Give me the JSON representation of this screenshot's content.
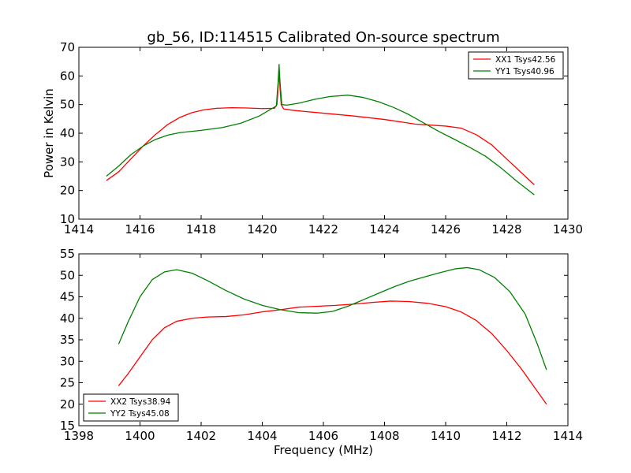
{
  "figure": {
    "title": "gb_56, ID:114515 Calibrated On-source spectrum"
  },
  "chart_data": [
    {
      "type": "line",
      "title": "gb_56, ID:114515 Calibrated On-source spectrum",
      "xlabel": "",
      "ylabel": "Power in Kelvin",
      "xlim": [
        1414,
        1430
      ],
      "ylim": [
        10,
        70
      ],
      "xticks": [
        1414,
        1416,
        1418,
        1420,
        1422,
        1424,
        1426,
        1428,
        1430
      ],
      "yticks": [
        10,
        20,
        30,
        40,
        50,
        60,
        70
      ],
      "grid": false,
      "legend_position": "top-right",
      "series": [
        {
          "name": "XX1 Tsys42.56",
          "color": "#ff0000",
          "points": [
            [
              1414.9,
              23.5
            ],
            [
              1415.3,
              26.5
            ],
            [
              1415.7,
              31
            ],
            [
              1416.1,
              35.5
            ],
            [
              1416.5,
              39.5
            ],
            [
              1416.9,
              43
            ],
            [
              1417.3,
              45.5
            ],
            [
              1417.7,
              47.2
            ],
            [
              1418.1,
              48.2
            ],
            [
              1418.5,
              48.7
            ],
            [
              1419,
              48.9
            ],
            [
              1419.5,
              48.8
            ],
            [
              1420,
              48.6
            ],
            [
              1420.4,
              48.7
            ],
            [
              1420.48,
              50
            ],
            [
              1420.52,
              56
            ],
            [
              1420.55,
              62
            ],
            [
              1420.58,
              56
            ],
            [
              1420.62,
              50
            ],
            [
              1420.7,
              48.5
            ],
            [
              1421,
              48
            ],
            [
              1422,
              47
            ],
            [
              1423,
              46
            ],
            [
              1424,
              44.8
            ],
            [
              1425,
              43.2
            ],
            [
              1426,
              42.5
            ],
            [
              1426.5,
              41.8
            ],
            [
              1427,
              39.5
            ],
            [
              1427.5,
              36
            ],
            [
              1428,
              31
            ],
            [
              1428.5,
              26
            ],
            [
              1428.9,
              22
            ]
          ]
        },
        {
          "name": "YY1 Tsys40.96",
          "color": "#008000",
          "points": [
            [
              1414.9,
              25
            ],
            [
              1415.3,
              28.5
            ],
            [
              1415.7,
              32.5
            ],
            [
              1416.1,
              35.5
            ],
            [
              1416.5,
              37.8
            ],
            [
              1416.9,
              39.3
            ],
            [
              1417.3,
              40.2
            ],
            [
              1418,
              41
            ],
            [
              1418.7,
              42
            ],
            [
              1419.3,
              43.5
            ],
            [
              1419.9,
              46
            ],
            [
              1420.3,
              48.5
            ],
            [
              1420.46,
              49.5
            ],
            [
              1420.52,
              58
            ],
            [
              1420.55,
              64
            ],
            [
              1420.58,
              58
            ],
            [
              1420.64,
              50
            ],
            [
              1420.8,
              49.8
            ],
            [
              1421.2,
              50.5
            ],
            [
              1421.7,
              51.8
            ],
            [
              1422.2,
              52.8
            ],
            [
              1422.8,
              53.3
            ],
            [
              1423.3,
              52.5
            ],
            [
              1423.8,
              51
            ],
            [
              1424.3,
              49
            ],
            [
              1424.8,
              46.5
            ],
            [
              1425.3,
              43.5
            ],
            [
              1425.8,
              40.5
            ],
            [
              1426.3,
              37.8
            ],
            [
              1426.8,
              35
            ],
            [
              1427.3,
              32
            ],
            [
              1427.8,
              28
            ],
            [
              1428.3,
              23.5
            ],
            [
              1428.9,
              18.5
            ]
          ]
        }
      ]
    },
    {
      "type": "line",
      "title": "",
      "xlabel": "Frequency (MHz)",
      "ylabel": "",
      "xlim": [
        1398,
        1414
      ],
      "ylim": [
        15,
        55
      ],
      "xticks": [
        1398,
        1400,
        1402,
        1404,
        1406,
        1408,
        1410,
        1412,
        1414
      ],
      "yticks": [
        15,
        20,
        25,
        30,
        35,
        40,
        45,
        50,
        55
      ],
      "grid": false,
      "legend_position": "bottom-left",
      "series": [
        {
          "name": "XX2 Tsys38.94",
          "color": "#ff0000",
          "points": [
            [
              1399.3,
              24.3
            ],
            [
              1399.6,
              27
            ],
            [
              1400,
              31
            ],
            [
              1400.4,
              35
            ],
            [
              1400.8,
              37.8
            ],
            [
              1401.2,
              39.3
            ],
            [
              1401.7,
              40
            ],
            [
              1402.2,
              40.3
            ],
            [
              1402.8,
              40.4
            ],
            [
              1403.4,
              40.8
            ],
            [
              1404,
              41.5
            ],
            [
              1404.6,
              42
            ],
            [
              1405.2,
              42.6
            ],
            [
              1405.8,
              42.8
            ],
            [
              1406.4,
              43
            ],
            [
              1407,
              43.3
            ],
            [
              1407.6,
              43.7
            ],
            [
              1408.2,
              44
            ],
            [
              1408.8,
              43.9
            ],
            [
              1409.4,
              43.5
            ],
            [
              1410,
              42.7
            ],
            [
              1410.5,
              41.5
            ],
            [
              1411,
              39.5
            ],
            [
              1411.5,
              36.5
            ],
            [
              1412,
              32.5
            ],
            [
              1412.5,
              28
            ],
            [
              1413,
              23
            ],
            [
              1413.3,
              20
            ]
          ]
        },
        {
          "name": "YY2 Tsys45.08",
          "color": "#008000",
          "points": [
            [
              1399.3,
              34
            ],
            [
              1399.6,
              39
            ],
            [
              1400,
              45
            ],
            [
              1400.4,
              49
            ],
            [
              1400.8,
              50.8
            ],
            [
              1401.2,
              51.3
            ],
            [
              1401.7,
              50.5
            ],
            [
              1402.2,
              48.8
            ],
            [
              1402.8,
              46.5
            ],
            [
              1403.4,
              44.5
            ],
            [
              1404,
              43
            ],
            [
              1404.6,
              42
            ],
            [
              1405.2,
              41.3
            ],
            [
              1405.8,
              41.2
            ],
            [
              1406.3,
              41.6
            ],
            [
              1406.8,
              42.8
            ],
            [
              1407.3,
              44.3
            ],
            [
              1407.8,
              45.8
            ],
            [
              1408.3,
              47.3
            ],
            [
              1408.8,
              48.6
            ],
            [
              1409.3,
              49.6
            ],
            [
              1409.8,
              50.6
            ],
            [
              1410.3,
              51.5
            ],
            [
              1410.7,
              51.8
            ],
            [
              1411.1,
              51.3
            ],
            [
              1411.6,
              49.5
            ],
            [
              1412.1,
              46.2
            ],
            [
              1412.6,
              41
            ],
            [
              1413,
              34
            ],
            [
              1413.3,
              28
            ]
          ]
        }
      ]
    }
  ]
}
